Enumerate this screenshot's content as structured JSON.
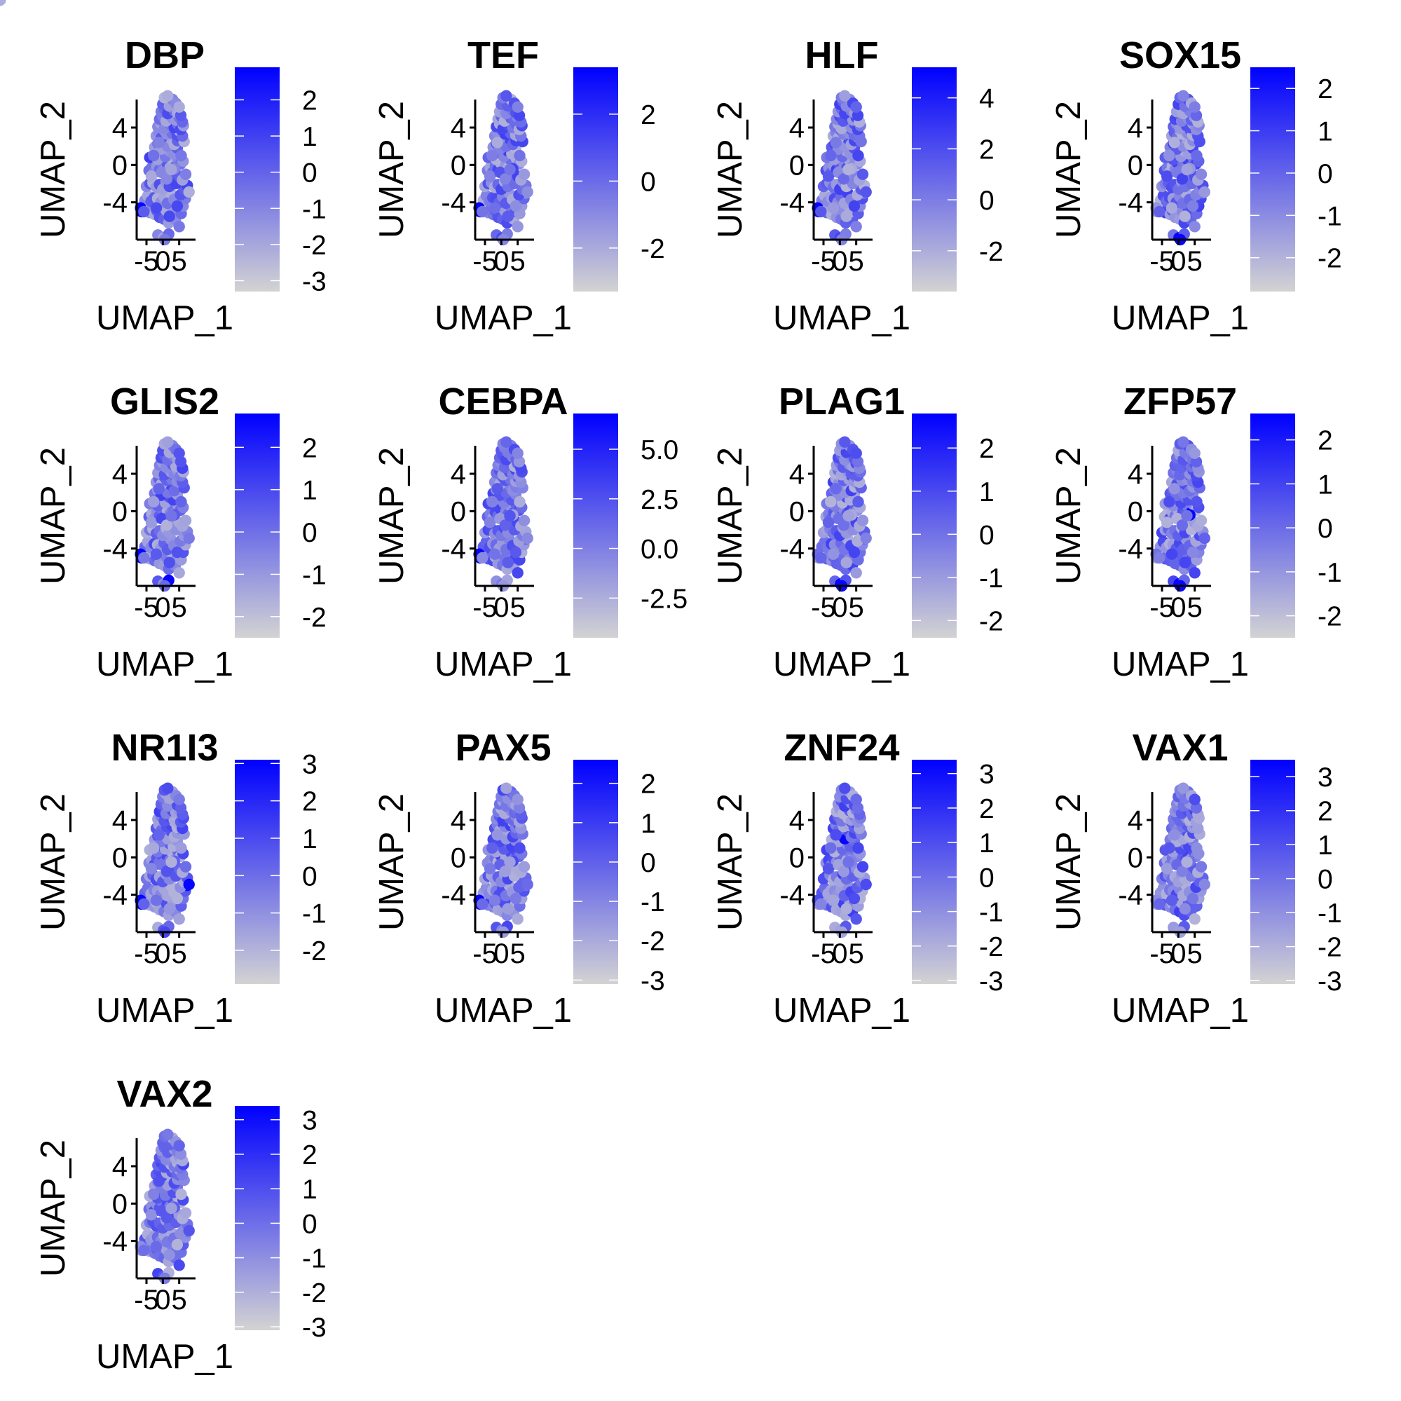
{
  "chart_data": {
    "type": "scatter",
    "layout": "facet-grid",
    "color_low": "#d3d3d3",
    "color_high": "#0000ff",
    "xlabel": "UMAP_1",
    "ylabel": "UMAP_2",
    "x_ticks": [
      -5,
      0,
      5
    ],
    "x_tick_labels": [
      "-5",
      "0",
      "5"
    ],
    "y_ticks": [
      -4,
      0,
      4
    ],
    "y_tick_labels": [
      "-4",
      "0",
      "4"
    ],
    "xlim": [
      -8,
      10
    ],
    "ylim": [
      -8,
      7
    ],
    "cells": {
      "x": [
        -6.5,
        -4.0,
        -3.2,
        -2.5,
        -1.8,
        -1.0,
        -0.3,
        0.4,
        1.1,
        1.8,
        2.5,
        3.1,
        3.8,
        4.4,
        5.0,
        5.6,
        6.2,
        6.9,
        7.4,
        -5.5,
        -4.6,
        -3.6,
        -2.6,
        -1.6,
        -0.6,
        0.4,
        1.4,
        2.4,
        3.4,
        4.4,
        5.4,
        6.5,
        7.5,
        8.0,
        -5.0,
        -4.0,
        -3.0,
        -2.0,
        -1.0,
        0.0,
        1.0,
        2.0,
        3.0,
        4.0,
        5.0,
        6.0,
        7.0,
        -4.2,
        -3.4,
        -2.6,
        -1.8,
        -1.0,
        -0.2,
        0.6,
        1.4,
        2.2,
        3.0,
        3.8,
        4.6,
        5.4,
        6.2,
        -4.0,
        -2.8,
        -1.6,
        -0.4,
        0.8,
        2.0,
        3.2,
        4.4,
        5.6,
        -2.5,
        -1.5,
        -0.5,
        0.5,
        1.5,
        2.5,
        3.5,
        4.5,
        5.5,
        6.5,
        -2.0,
        -1.2,
        -0.4,
        0.4,
        1.2,
        2.0,
        2.8,
        3.6,
        4.4,
        5.2,
        6.0,
        -1.5,
        -0.5,
        0.5,
        1.5,
        2.5,
        3.5,
        4.5,
        5.5,
        6.3,
        -1.0,
        0.0,
        1.0,
        2.0,
        3.0,
        4.0,
        5.0,
        6.0,
        -0.5,
        0.5,
        1.5,
        2.5,
        3.5,
        4.5,
        5.5,
        0.0,
        1.0,
        2.0,
        3.0,
        4.0,
        5.0,
        0.5,
        1.5,
        -3.5,
        -2.8,
        -2.0,
        -1.2,
        -0.4,
        2.0,
        3.5,
        -6.8,
        -5.8,
        -1.5,
        0.2,
        1.8,
        0.6,
        1.2,
        2.6
      ],
      "y": [
        -5.0,
        -5.1,
        -4.6,
        -5.3,
        -4.9,
        -5.6,
        -4.5,
        -5.8,
        -4.9,
        -6.2,
        -5.4,
        -4.7,
        -5.8,
        -5.0,
        -6.6,
        -5.2,
        -4.4,
        -3.6,
        -3.0,
        -3.8,
        -3.3,
        -3.9,
        -3.5,
        -3.6,
        -4.0,
        -3.4,
        -4.1,
        -3.0,
        -3.7,
        -4.4,
        -3.2,
        -2.6,
        -2.2,
        -2.9,
        -2.3,
        -2.0,
        -1.9,
        -2.4,
        -2.1,
        -2.6,
        -1.8,
        -2.3,
        -1.4,
        -2.0,
        -1.2,
        -1.6,
        -1.0,
        -0.6,
        -0.3,
        -0.8,
        -0.1,
        -0.5,
        0.2,
        -0.6,
        0.0,
        -0.3,
        0.5,
        -0.2,
        0.7,
        0.1,
        0.4,
        0.8,
        1.1,
        0.6,
        1.3,
        0.9,
        1.5,
        1.2,
        1.8,
        1.0,
        1.9,
        2.3,
        1.7,
        2.5,
        2.0,
        2.8,
        2.2,
        2.6,
        3.0,
        2.5,
        3.1,
        3.5,
        2.9,
        3.7,
        3.3,
        3.9,
        3.4,
        3.8,
        3.2,
        3.6,
        3.1,
        4.1,
        4.4,
        3.9,
        4.6,
        4.2,
        4.0,
        4.4,
        3.8,
        4.2,
        4.9,
        5.2,
        4.7,
        5.4,
        5.0,
        4.8,
        5.1,
        4.6,
        5.7,
        6.0,
        5.5,
        6.2,
        5.8,
        5.6,
        5.3,
        6.5,
        6.8,
        6.3,
        7.0,
        6.6,
        6.2,
        7.2,
        7.4,
        -1.2,
        1.0,
        -4.6,
        2.4,
        -0.8,
        -5.5,
        -0.4,
        -4.6,
        -5.0,
        -7.5,
        -7.8,
        -7.4,
        -8.0,
        -1.5,
        -0.5
      ],
      "n": 140
    },
    "panels": [
      {
        "title": "DBP",
        "legend_ticks": [
          2,
          1,
          0,
          -1,
          -2,
          -3
        ],
        "legend_labels": [
          "2",
          "1",
          "0",
          "-1",
          "-2",
          "-3"
        ],
        "range": [
          -3.3,
          2.9
        ],
        "seed": 11,
        "hot": [
          [
            -6.8,
            -5.0
          ]
        ]
      },
      {
        "title": "TEF",
        "legend_ticks": [
          2,
          0,
          -2
        ],
        "legend_labels": [
          "2",
          "0",
          "-2"
        ],
        "range": [
          -3.3,
          3.4
        ],
        "seed": 23,
        "hot": [
          [
            -6.8,
            -5.0
          ]
        ]
      },
      {
        "title": "HLF",
        "legend_ticks": [
          4,
          2,
          0,
          -2
        ],
        "legend_labels": [
          "4",
          "2",
          "0",
          "-2"
        ],
        "range": [
          -3.6,
          5.2
        ],
        "seed": 37,
        "hot": [
          [
            -6.8,
            -5.0
          ]
        ]
      },
      {
        "title": "SOX15",
        "legend_ticks": [
          2,
          1,
          0,
          -1,
          -2
        ],
        "legend_labels": [
          "2",
          "1",
          "0",
          "-1",
          "-2"
        ],
        "range": [
          -2.8,
          2.5
        ],
        "seed": 41,
        "hot": [
          [
            0.6,
            -7.8
          ]
        ]
      },
      {
        "title": "GLIS2",
        "legend_ticks": [
          2,
          1,
          0,
          -1,
          -2
        ],
        "legend_labels": [
          "2",
          "1",
          "0",
          "-1",
          "-2"
        ],
        "range": [
          -2.5,
          2.8
        ],
        "seed": 53,
        "hot": [
          [
            -6.8,
            -5.0
          ],
          [
            1.2,
            -7.4
          ]
        ]
      },
      {
        "title": "CEBPA",
        "legend_ticks": [
          5.0,
          2.5,
          0.0,
          -2.5
        ],
        "legend_labels": [
          "5.0",
          "2.5",
          "0.0",
          "-2.5"
        ],
        "range": [
          -4.5,
          6.8
        ],
        "seed": 61,
        "hot": [
          [
            -6.8,
            -5.0
          ]
        ]
      },
      {
        "title": "PLAG1",
        "legend_ticks": [
          2,
          1,
          0,
          -1,
          -2
        ],
        "legend_labels": [
          "2",
          "1",
          "0",
          "-1",
          "-2"
        ],
        "range": [
          -2.4,
          2.8
        ],
        "seed": 71,
        "hot": [
          [
            0.6,
            -7.8
          ]
        ]
      },
      {
        "title": "ZFP57",
        "legend_ticks": [
          2,
          1,
          0,
          -1,
          -2
        ],
        "legend_labels": [
          "2",
          "1",
          "0",
          "-1",
          "-2"
        ],
        "range": [
          -2.5,
          2.6
        ],
        "seed": 83,
        "hot": [
          [
            0.6,
            -7.8
          ],
          [
            3.5,
            -0.5
          ]
        ]
      },
      {
        "title": "NR1I3",
        "legend_ticks": [
          3,
          2,
          1,
          0,
          -1,
          -2
        ],
        "legend_labels": [
          "3",
          "2",
          "1",
          "0",
          "-1",
          "-2"
        ],
        "range": [
          -2.9,
          3.1
        ],
        "seed": 97,
        "hot": [
          [
            8.0,
            -2.9
          ],
          [
            -6.8,
            -5.0
          ]
        ]
      },
      {
        "title": "PAX5",
        "legend_ticks": [
          2,
          1,
          0,
          -1,
          -2,
          -3
        ],
        "legend_labels": [
          "2",
          "1",
          "0",
          "-1",
          "-2",
          "-3"
        ],
        "range": [
          -3.1,
          2.6
        ],
        "seed": 101,
        "hot": [
          [
            -6.8,
            -5.0
          ]
        ]
      },
      {
        "title": "ZNF24",
        "legend_ticks": [
          3,
          2,
          1,
          0,
          -1,
          -2,
          -3
        ],
        "legend_labels": [
          "3",
          "2",
          "1",
          "0",
          "-1",
          "-2",
          "-3"
        ],
        "range": [
          -3.1,
          3.4
        ],
        "seed": 113,
        "hot": [
          [
            1.0,
            2.3
          ]
        ]
      },
      {
        "title": "VAX1",
        "legend_ticks": [
          3,
          2,
          1,
          0,
          -1,
          -2,
          -3
        ],
        "legend_labels": [
          "3",
          "2",
          "1",
          "0",
          "-1",
          "-2",
          "-3"
        ],
        "range": [
          -3.1,
          3.5
        ],
        "seed": 127,
        "hot": [
          [
            2.0,
            -1.5
          ]
        ]
      },
      {
        "title": "VAX2",
        "legend_ticks": [
          3,
          2,
          1,
          0,
          -1,
          -2,
          -3
        ],
        "legend_labels": [
          "3",
          "2",
          "1",
          "0",
          "-1",
          "-2",
          "-3"
        ],
        "range": [
          -3.1,
          3.4
        ],
        "seed": 131,
        "hot": [
          [
            2.0,
            -1.5
          ]
        ]
      }
    ]
  }
}
